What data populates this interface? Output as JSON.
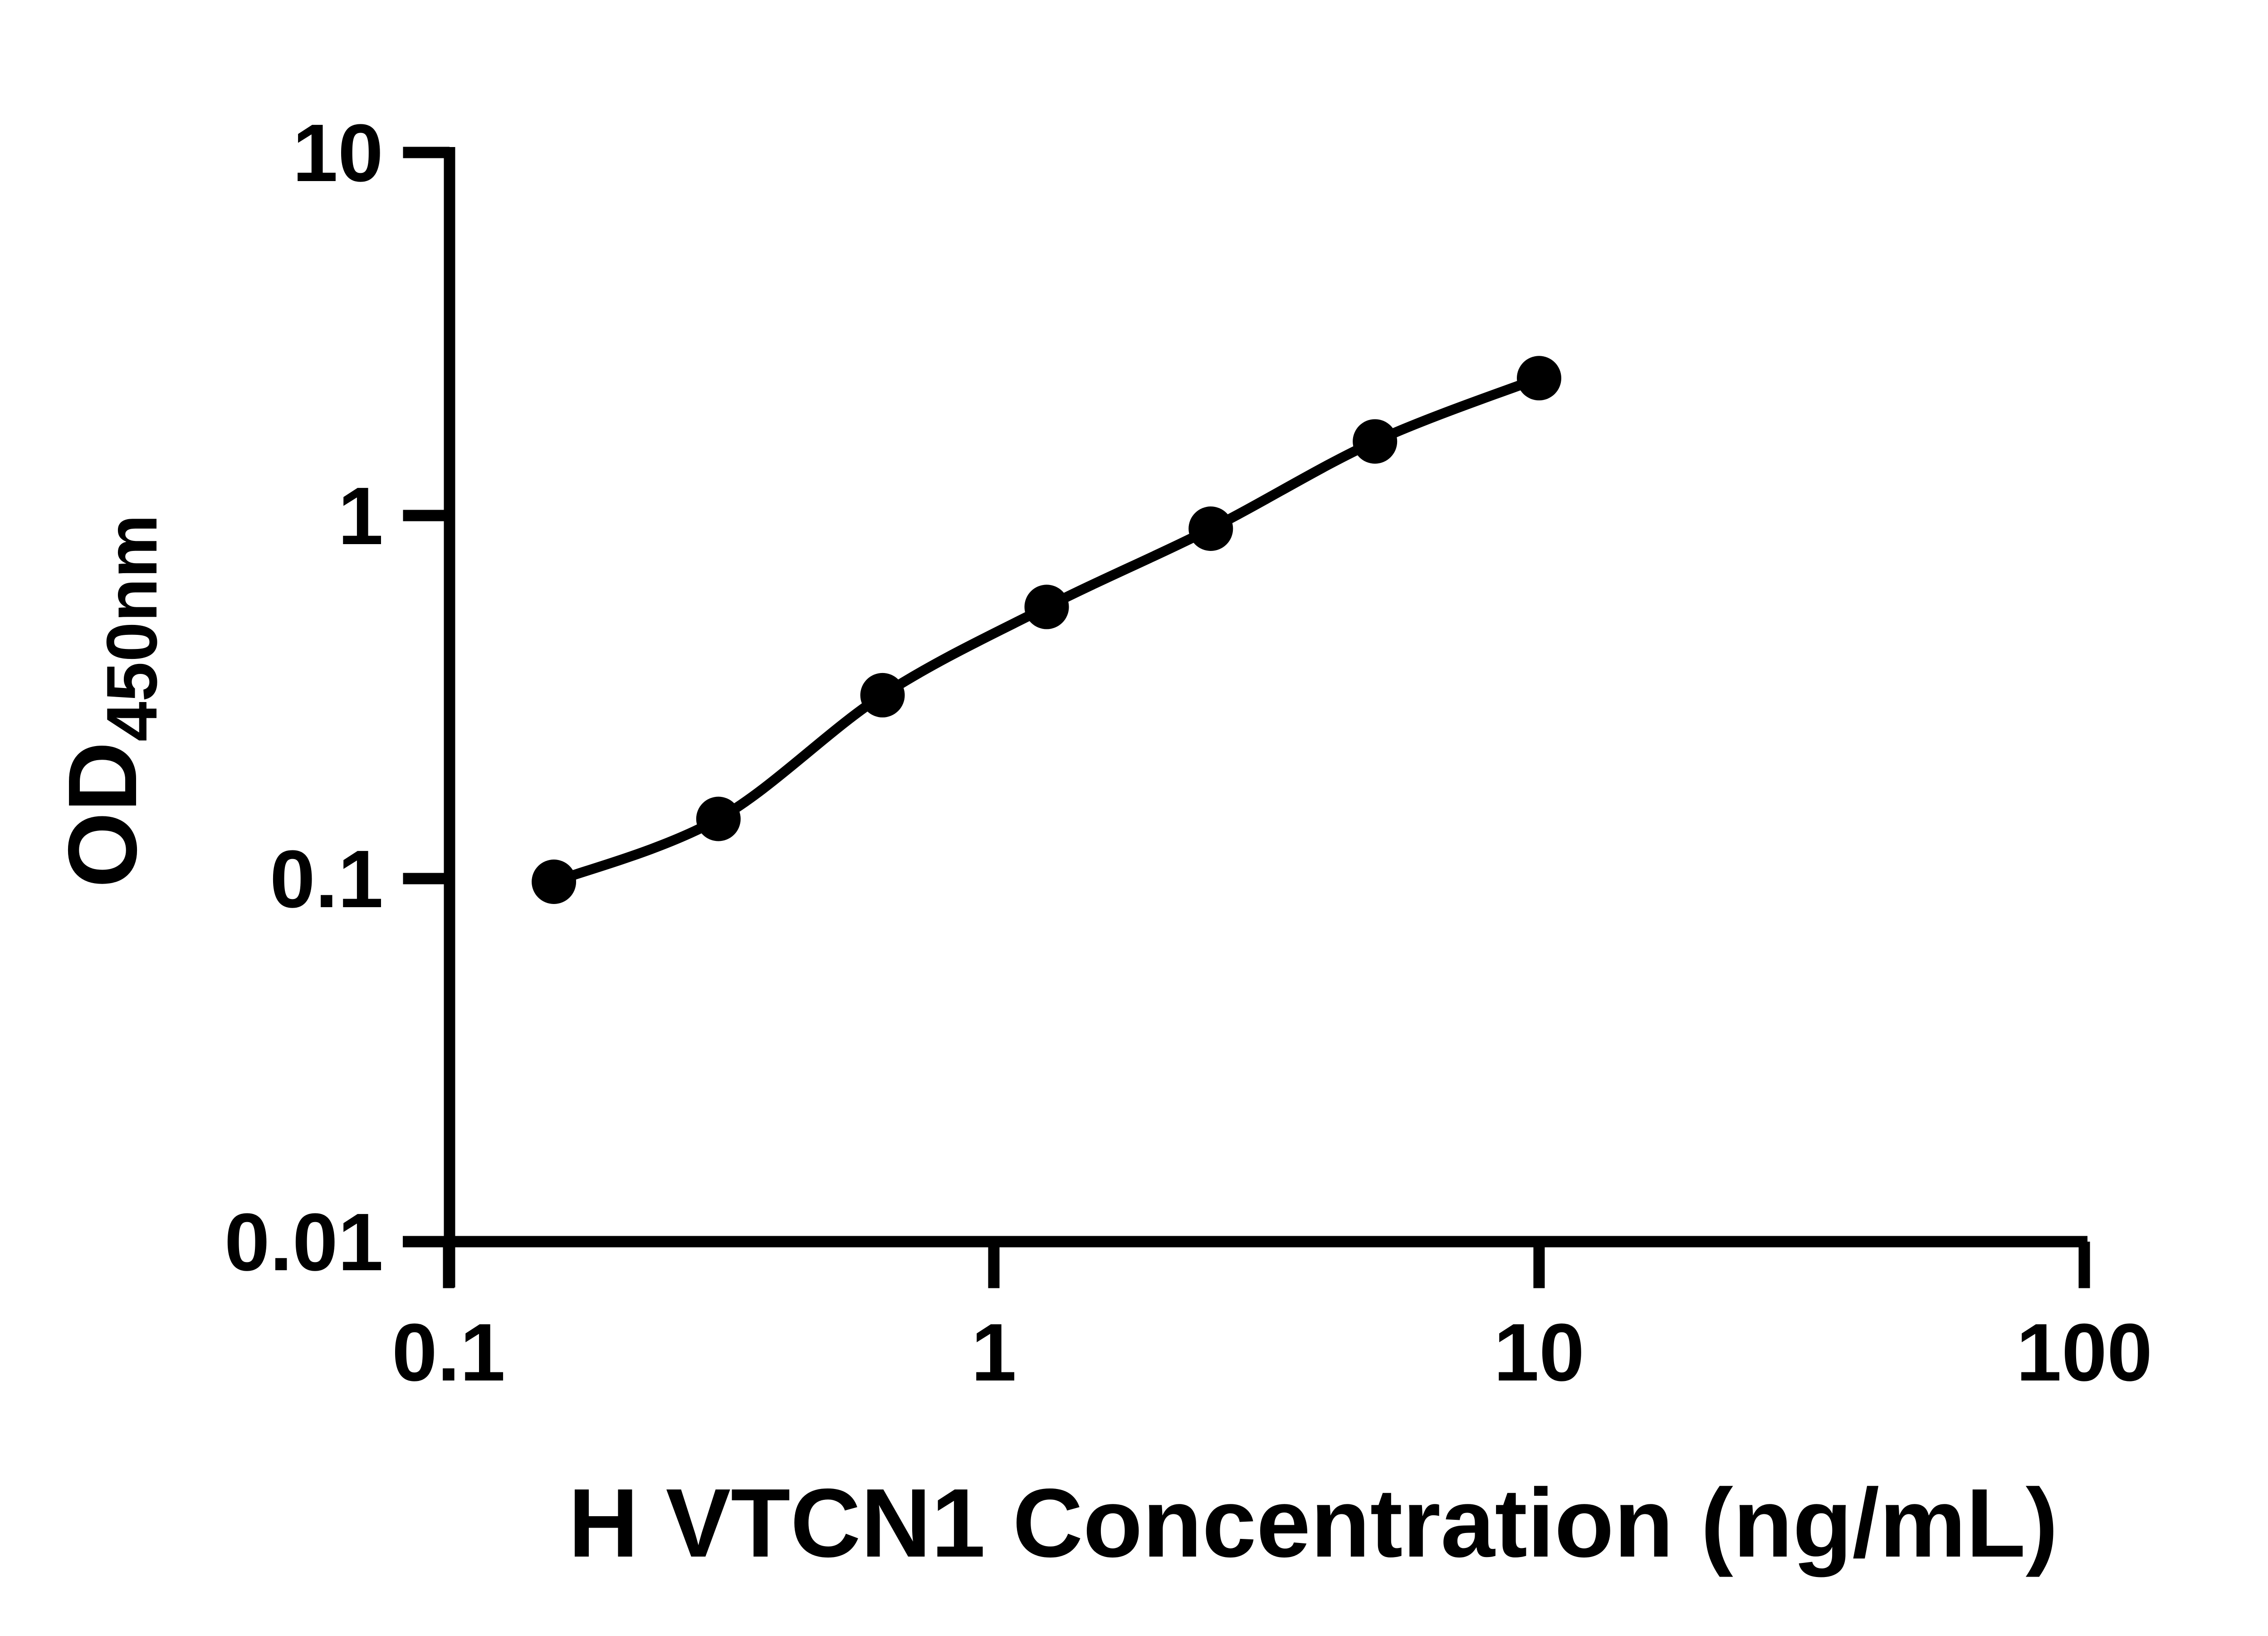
{
  "figure": {
    "background": "#ffffff",
    "axis_color": "#000000",
    "marker_color": "#000000",
    "line_color": "#000000"
  },
  "chart_data": {
    "type": "line",
    "title": "",
    "xlabel": "H VTCN1 Concentration (ng/mL)",
    "ylabel": "OD450nm",
    "ylabel_base": "OD",
    "ylabel_sub": "450nm",
    "x_scale": "log",
    "y_scale": "log",
    "xlim": [
      0.1,
      100
    ],
    "ylim": [
      0.01,
      10
    ],
    "grid": false,
    "legend": false,
    "marker": "filled-circle",
    "x": [
      0.156,
      0.3125,
      0.625,
      1.25,
      2.5,
      5,
      10
    ],
    "y": [
      0.098,
      0.146,
      0.32,
      0.56,
      0.92,
      1.6,
      2.39
    ],
    "x_tick_values": [
      0.1,
      1,
      10,
      100
    ],
    "x_tick_labels": [
      "0.1",
      "1",
      "10",
      "100"
    ],
    "y_tick_values": [
      10,
      1,
      0.1,
      0.01
    ],
    "y_tick_labels": [
      "10",
      "1",
      "0.1",
      "0.01"
    ]
  }
}
